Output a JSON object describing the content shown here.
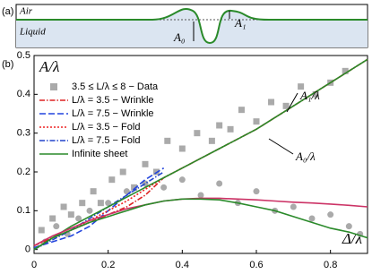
{
  "panel_a": {
    "label": "(a)",
    "air": "Air",
    "liquid": "Liquid",
    "a0": "A₀",
    "a1": "A₁"
  },
  "chart_data": {
    "type": "line",
    "panel_label": "(b)",
    "ylabel": "A/λ",
    "xlabel": "Δ/λ",
    "annotations": [
      "A₀/λ",
      "A₁/λ"
    ],
    "xlim": [
      0,
      0.9
    ],
    "xticks": [
      0,
      0.2,
      0.4,
      0.6,
      0.8
    ],
    "ylim": [
      -0.01,
      0.5
    ],
    "yticks": [
      0,
      0.1,
      0.2,
      0.3,
      0.4,
      0.5
    ],
    "x": [
      0,
      0.05,
      0.1,
      0.15,
      0.2,
      0.25,
      0.3,
      0.35,
      0.4,
      0.45,
      0.5,
      0.55,
      0.6,
      0.65,
      0.7,
      0.75,
      0.8,
      0.85,
      0.9
    ],
    "scatter": [
      {
        "name": "3.5 ≤ L/λ ≤ 8 − Data",
        "marker": "square",
        "color": "#aaaaaa",
        "x": [
          0.02,
          0.05,
          0.08,
          0.1,
          0.13,
          0.16,
          0.18,
          0.21,
          0.24,
          0.27,
          0.3,
          0.33,
          0.36,
          0.4,
          0.44,
          0.48,
          0.5,
          0.53,
          0.56,
          0.6,
          0.64,
          0.68,
          0.72,
          0.76,
          0.8,
          0.84
        ],
        "values": [
          0.05,
          0.08,
          0.11,
          0.09,
          0.12,
          0.15,
          0.12,
          0.18,
          0.2,
          0.16,
          0.22,
          0.2,
          0.28,
          0.26,
          0.3,
          0.28,
          0.32,
          0.31,
          0.36,
          0.33,
          0.38,
          0.37,
          0.42,
          0.4,
          0.43,
          0.46
        ]
      },
      {
        "marker": "circle",
        "color": "#aaaaaa",
        "x": [
          0.03,
          0.06,
          0.09,
          0.12,
          0.15,
          0.2,
          0.25,
          0.3,
          0.35,
          0.4,
          0.45,
          0.5,
          0.55,
          0.6,
          0.65,
          0.7,
          0.75,
          0.8,
          0.85,
          0.88
        ],
        "values": [
          0.02,
          0.06,
          0.04,
          0.08,
          0.1,
          0.12,
          0.15,
          0.17,
          0.16,
          0.18,
          0.14,
          0.17,
          0.12,
          0.15,
          0.1,
          0.11,
          0.08,
          0.09,
          0.06,
          0.04
        ]
      }
    ],
    "series": [
      {
        "name": "L/λ = 3.5 − Wrinkle",
        "color": "#dd2222",
        "style": "dashdot",
        "values": [
          0.01,
          0.03,
          0.05,
          0.07,
          0.09,
          0.11,
          0.14,
          0.185,
          0.21,
          0.235,
          0.26,
          0.285,
          0.31,
          0.34,
          0.37,
          0.4,
          0.43,
          0.46,
          0.49
        ]
      },
      {
        "name": "L/λ = 7.5 − Wrinkle",
        "color": "#2244dd",
        "style": "dashed",
        "values": [
          0.005,
          0.02,
          0.035,
          0.06,
          0.1,
          0.14,
          0.18,
          0.21,
          null,
          null,
          null,
          null,
          null,
          null,
          null,
          null,
          null,
          null,
          null
        ]
      },
      {
        "name": "L/λ = 3.5 − Fold",
        "color": "#ee2222",
        "style": "dotted",
        "values": [
          0.01,
          0.03,
          0.05,
          0.075,
          0.1,
          0.125,
          0.155,
          0.185,
          0.21,
          0.235,
          0.26,
          0.285,
          0.31,
          0.34,
          0.37,
          0.4,
          0.43,
          0.46,
          0.49
        ]
      },
      {
        "name": "L/λ = 7.5 − Fold",
        "color": "#2244cc",
        "style": "dashdot",
        "values": [
          0.0,
          0.025,
          0.05,
          0.08,
          0.11,
          0.14,
          0.17,
          0.2,
          null,
          null,
          null,
          null,
          null,
          null,
          null,
          null,
          null,
          null,
          null
        ]
      },
      {
        "name": "Infinite sheet",
        "color": "#2a8a2a",
        "style": "solid",
        "values": [
          0,
          0.03,
          0.06,
          0.085,
          0.11,
          0.135,
          0.16,
          0.185,
          0.21,
          0.235,
          0.26,
          0.285,
          0.31,
          0.34,
          0.37,
          0.4,
          0.43,
          0.46,
          0.49
        ]
      },
      {
        "color": "#cc3366",
        "style": "solid",
        "values": [
          0.01,
          0.035,
          0.055,
          0.075,
          0.09,
          0.105,
          0.115,
          0.125,
          0.13,
          0.132,
          0.132,
          0.13,
          0.128,
          0.125,
          0.122,
          0.12,
          0.117,
          0.114,
          0.11
        ]
      },
      {
        "color": "#2a8a2a",
        "style": "solid",
        "values": [
          0,
          0.03,
          0.05,
          0.07,
          0.085,
          0.1,
          0.115,
          0.125,
          0.13,
          0.13,
          0.128,
          0.12,
          0.11,
          0.1,
          0.085,
          0.07,
          0.055,
          0.045,
          0.03
        ]
      }
    ]
  }
}
